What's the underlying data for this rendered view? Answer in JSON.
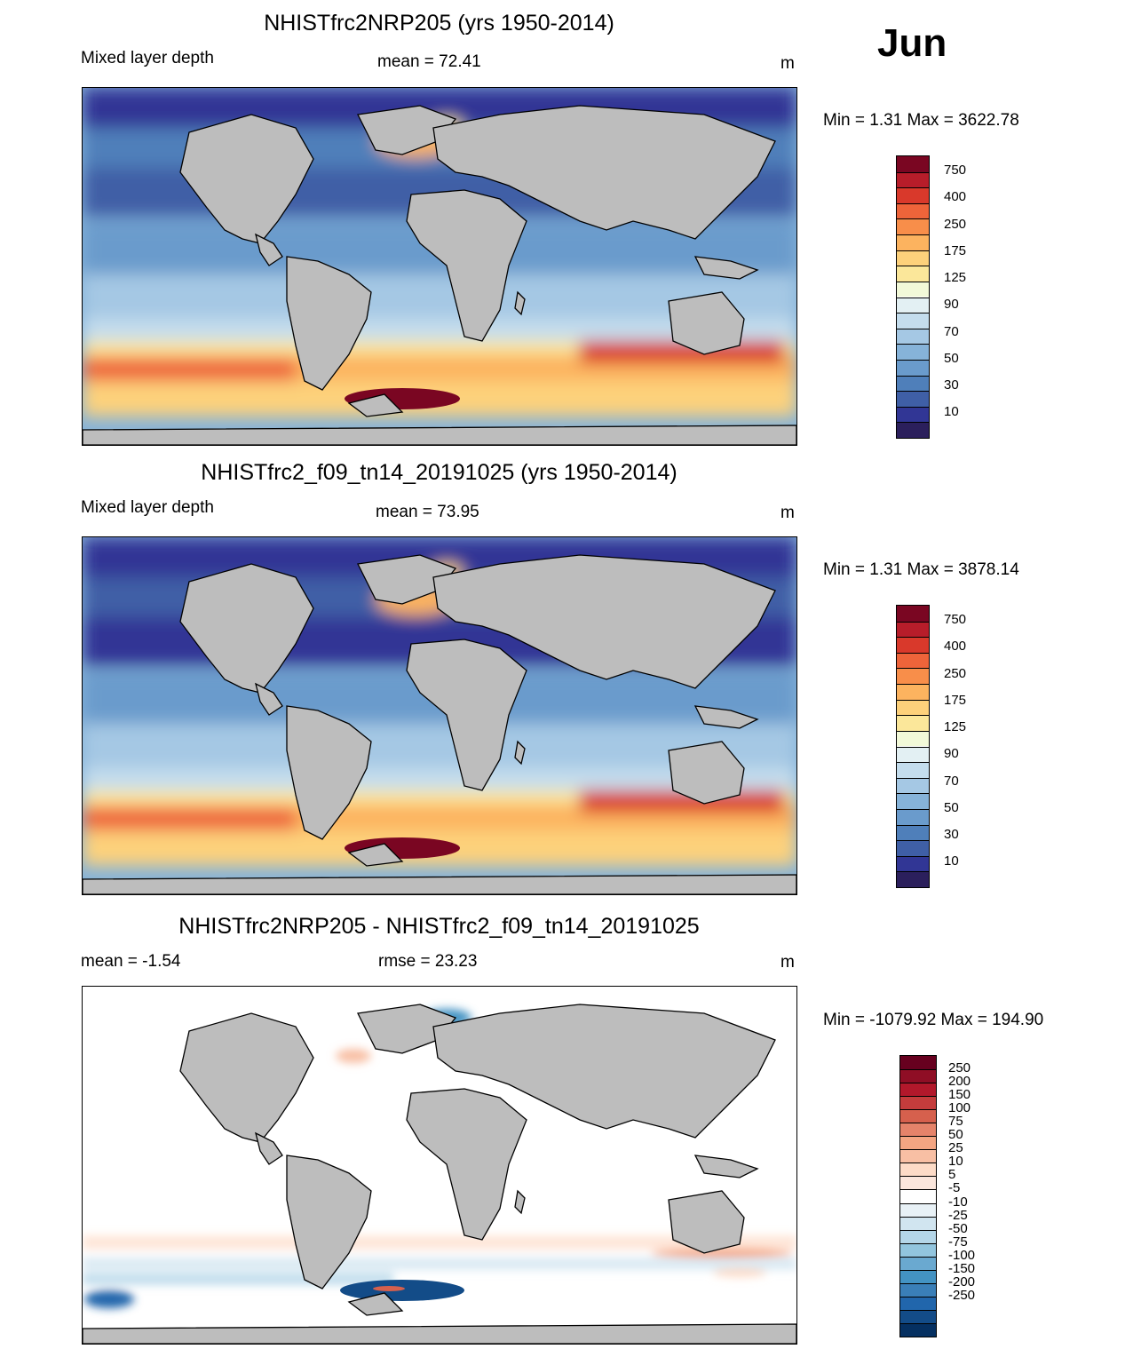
{
  "month": "Jun",
  "panels": [
    {
      "title": "NHISTfrc2NRP205 (yrs 1950-2014)",
      "left_label": "Mixed layer depth",
      "center_label": "mean =  72.41",
      "units": "m",
      "minmax": "Min =    1.31 Max = 3622.78",
      "colorbar": {
        "colors": [
          "#2b1f5c",
          "#313695",
          "#3f5fa6",
          "#4f7fba",
          "#6a9bcc",
          "#86b3d9",
          "#a5c8e4",
          "#c4dded",
          "#e3f0f3",
          "#f2f9d8",
          "#fbe79a",
          "#fdd17b",
          "#fcb35f",
          "#f88e4a",
          "#ee643a",
          "#d9392b",
          "#b71d2a",
          "#7a0622"
        ],
        "labels": [
          "750",
          "400",
          "250",
          "175",
          "125",
          "90",
          "70",
          "50",
          "30",
          "10"
        ]
      }
    },
    {
      "title": "NHISTfrc2_f09_tn14_20191025 (yrs 1950-2014)",
      "left_label": "Mixed layer depth",
      "center_label": "mean =  73.95",
      "units": "m",
      "minmax": "Min =    1.31 Max = 3878.14",
      "colorbar": {
        "colors": [
          "#2b1f5c",
          "#313695",
          "#3f5fa6",
          "#4f7fba",
          "#6a9bcc",
          "#86b3d9",
          "#a5c8e4",
          "#c4dded",
          "#e3f0f3",
          "#f2f9d8",
          "#fbe79a",
          "#fdd17b",
          "#fcb35f",
          "#f88e4a",
          "#ee643a",
          "#d9392b",
          "#b71d2a",
          "#7a0622"
        ],
        "labels": [
          "750",
          "400",
          "250",
          "175",
          "125",
          "90",
          "70",
          "50",
          "30",
          "10"
        ]
      }
    },
    {
      "title": "NHISTfrc2NRP205 - NHISTfrc2_f09_tn14_20191025",
      "left_label": "mean =  -1.54",
      "center_label": "rmse =  23.23",
      "units": "m",
      "minmax": "Min = -1079.92 Max = 194.90",
      "colorbar": {
        "colors": [
          "#053061",
          "#134c88",
          "#2166ac",
          "#3a7fb8",
          "#4393c3",
          "#6aa9d0",
          "#92c5de",
          "#b4d6e8",
          "#d1e5f0",
          "#e8f1f6",
          "#ffffff",
          "#fbe6dc",
          "#fddbc7",
          "#f8bfa4",
          "#f4a582",
          "#e5836a",
          "#d6604d",
          "#c43c3c",
          "#b2182b",
          "#8f0e25",
          "#67001f"
        ],
        "labels": [
          "250",
          "200",
          "150",
          "100",
          "75",
          "50",
          "25",
          "10",
          "5",
          "-5",
          "-10",
          "-25",
          "-50",
          "-75",
          "-100",
          "-150",
          "-200",
          "-250"
        ]
      }
    }
  ],
  "colors": {
    "land": "#bdbdbd",
    "coast": "#000000"
  }
}
